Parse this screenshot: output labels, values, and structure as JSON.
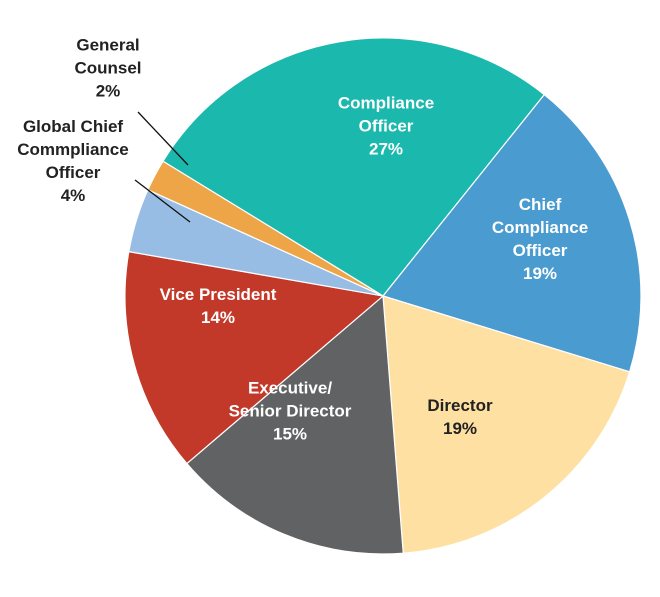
{
  "chart_data": {
    "type": "pie",
    "title": "",
    "slices": [
      {
        "label_lines": [
          "Compliance",
          "Officer"
        ],
        "percent_label": "27%",
        "value": 27,
        "color": "#1bb8ad",
        "label_color": "#ffffff",
        "leader_line": false
      },
      {
        "label_lines": [
          "Chief",
          "Compliance",
          "Officer"
        ],
        "percent_label": "19%",
        "value": 19,
        "color": "#4a9bd0",
        "label_color": "#ffffff",
        "leader_line": false
      },
      {
        "label_lines": [
          "Director"
        ],
        "percent_label": "19%",
        "value": 19,
        "color": "#fde0a2",
        "label_color": "#222222",
        "leader_line": false
      },
      {
        "label_lines": [
          "Executive/",
          "Senior Director"
        ],
        "percent_label": "15%",
        "value": 15,
        "color": "#616264",
        "label_color": "#ffffff",
        "leader_line": false
      },
      {
        "label_lines": [
          "Vice President"
        ],
        "percent_label": "14%",
        "value": 14,
        "color": "#c2392a",
        "label_color": "#ffffff",
        "leader_line": false
      },
      {
        "label_lines": [
          "Global Chief",
          "Commpliance",
          "Officer"
        ],
        "percent_label": "4%",
        "value": 4,
        "color": "#98bde4",
        "label_color": "#222222",
        "leader_line": true
      },
      {
        "label_lines": [
          "General",
          "Counsel"
        ],
        "percent_label": "2%",
        "value": 2,
        "color": "#eea548",
        "label_color": "#222222",
        "leader_line": true
      }
    ]
  }
}
